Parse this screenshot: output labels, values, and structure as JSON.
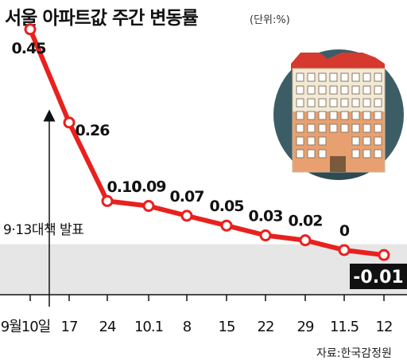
{
  "title": "서울 아파트값 주간 변동률",
  "unit": "(단위:%)",
  "source": "자료:한국감정원",
  "chart_data": {
    "type": "line",
    "title": "서울 아파트값 주간 변동률",
    "unit": "(단위:%)",
    "categories": [
      "9월10일",
      "17",
      "24",
      "10.1",
      "8",
      "15",
      "22",
      "29",
      "11.5",
      "12"
    ],
    "values": [
      0.45,
      0.26,
      0.1,
      0.09,
      0.07,
      0.05,
      0.03,
      0.02,
      0,
      -0.01
    ],
    "value_labels": [
      "0.45",
      "0.26",
      "0.10",
      "0.09",
      "0.07",
      "0.05",
      "0.03",
      "0.02",
      "0",
      "-0.01"
    ],
    "annotation": {
      "text": "9·13대책 발표"
    },
    "series_color": "#e8211e",
    "negative_band_color": "#e6e6e6",
    "negative_label_bg": "#111111",
    "grid": false,
    "legend": "none"
  }
}
